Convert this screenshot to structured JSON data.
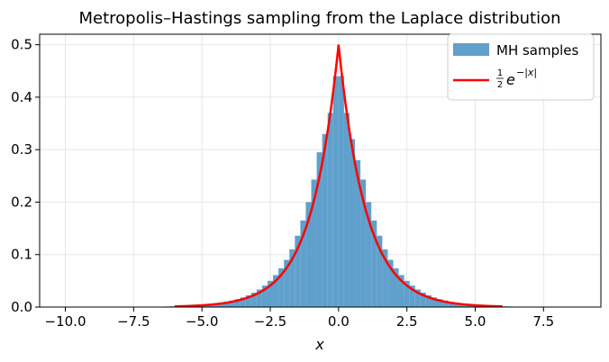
{
  "chart_data": {
    "type": "bar",
    "title": "Metropolis–Hastings sampling from the Laplace distribution",
    "xlabel": "x",
    "ylabel": "",
    "xlim": [
      -10.94,
      9.6
    ],
    "ylim": [
      0,
      0.52
    ],
    "xticks": [
      -10.0,
      -7.5,
      -5.0,
      -2.5,
      0.0,
      2.5,
      5.0,
      7.5
    ],
    "xtick_labels": [
      "−10.0",
      "−7.5",
      "−5.0",
      "−2.5",
      "0.0",
      "2.5",
      "5.0",
      "7.5"
    ],
    "yticks": [
      0.0,
      0.1,
      0.2,
      0.3,
      0.4,
      0.5
    ],
    "ytick_labels": [
      "0.0",
      "0.1",
      "0.2",
      "0.3",
      "0.4",
      "0.5"
    ],
    "grid": true,
    "legend_position": "top-right",
    "series": [
      {
        "name": "MH samples",
        "kind": "histogram",
        "color": "#5fa0cc",
        "bin_width": 0.2,
        "bin_range": [
          -10.0,
          8.8
        ],
        "density_model": "laplace-shaped, peak near 0.44 at x = 0, values listed per bin below",
        "bins": [
          {
            "x0": -7.2,
            "x1": -7.0,
            "value": 0.0006
          },
          {
            "x0": -6.8,
            "x1": -6.6,
            "value": 0.0008
          },
          {
            "x0": -6.4,
            "x1": -6.2,
            "value": 0.0011
          },
          {
            "x0": -6.2,
            "x1": -6.0,
            "value": 0.0014
          },
          {
            "x0": -6.0,
            "x1": -5.8,
            "value": 0.0017
          },
          {
            "x0": -5.8,
            "x1": -5.6,
            "value": 0.0021
          },
          {
            "x0": -5.6,
            "x1": -5.4,
            "value": 0.0025
          },
          {
            "x0": -5.4,
            "x1": -5.2,
            "value": 0.0031
          },
          {
            "x0": -5.2,
            "x1": -5.0,
            "value": 0.0038
          },
          {
            "x0": -5.0,
            "x1": -4.8,
            "value": 0.0046
          },
          {
            "x0": -4.8,
            "x1": -4.6,
            "value": 0.0056
          },
          {
            "x0": -4.6,
            "x1": -4.4,
            "value": 0.0068
          },
          {
            "x0": -4.4,
            "x1": -4.2,
            "value": 0.0083
          },
          {
            "x0": -4.2,
            "x1": -4.0,
            "value": 0.0101
          },
          {
            "x0": -4.0,
            "x1": -3.8,
            "value": 0.0124
          },
          {
            "x0": -3.8,
            "x1": -3.6,
            "value": 0.0151
          },
          {
            "x0": -3.6,
            "x1": -3.4,
            "value": 0.0184
          },
          {
            "x0": -3.4,
            "x1": -3.2,
            "value": 0.0225
          },
          {
            "x0": -3.2,
            "x1": -3.0,
            "value": 0.0275
          },
          {
            "x0": -3.0,
            "x1": -2.8,
            "value": 0.0336
          },
          {
            "x0": -2.8,
            "x1": -2.6,
            "value": 0.041
          },
          {
            "x0": -2.6,
            "x1": -2.4,
            "value": 0.05
          },
          {
            "x0": -2.4,
            "x1": -2.2,
            "value": 0.061
          },
          {
            "x0": -2.2,
            "x1": -2.0,
            "value": 0.074
          },
          {
            "x0": -2.0,
            "x1": -1.8,
            "value": 0.09
          },
          {
            "x0": -1.8,
            "x1": -1.6,
            "value": 0.11
          },
          {
            "x0": -1.6,
            "x1": -1.4,
            "value": 0.136
          },
          {
            "x0": -1.4,
            "x1": -1.2,
            "value": 0.165
          },
          {
            "x0": -1.2,
            "x1": -1.0,
            "value": 0.2
          },
          {
            "x0": -1.0,
            "x1": -0.8,
            "value": 0.243
          },
          {
            "x0": -0.8,
            "x1": -0.6,
            "value": 0.295
          },
          {
            "x0": -0.6,
            "x1": -0.4,
            "value": 0.33
          },
          {
            "x0": -0.4,
            "x1": -0.2,
            "value": 0.37
          },
          {
            "x0": -0.2,
            "x1": 0.0,
            "value": 0.44
          },
          {
            "x0": 0.0,
            "x1": 0.2,
            "value": 0.44
          },
          {
            "x0": 0.2,
            "x1": 0.4,
            "value": 0.37
          },
          {
            "x0": 0.4,
            "x1": 0.6,
            "value": 0.32
          },
          {
            "x0": 0.6,
            "x1": 0.8,
            "value": 0.28
          },
          {
            "x0": 0.8,
            "x1": 1.0,
            "value": 0.243
          },
          {
            "x0": 1.0,
            "x1": 1.2,
            "value": 0.2
          },
          {
            "x0": 1.2,
            "x1": 1.4,
            "value": 0.165
          },
          {
            "x0": 1.4,
            "x1": 1.6,
            "value": 0.136
          },
          {
            "x0": 1.6,
            "x1": 1.8,
            "value": 0.11
          },
          {
            "x0": 1.8,
            "x1": 2.0,
            "value": 0.09
          },
          {
            "x0": 2.0,
            "x1": 2.2,
            "value": 0.074
          },
          {
            "x0": 2.2,
            "x1": 2.4,
            "value": 0.061
          },
          {
            "x0": 2.4,
            "x1": 2.6,
            "value": 0.05
          },
          {
            "x0": 2.6,
            "x1": 2.8,
            "value": 0.041
          },
          {
            "x0": 2.8,
            "x1": 3.0,
            "value": 0.0336
          },
          {
            "x0": 3.0,
            "x1": 3.2,
            "value": 0.0275
          },
          {
            "x0": 3.2,
            "x1": 3.4,
            "value": 0.0225
          },
          {
            "x0": 3.4,
            "x1": 3.6,
            "value": 0.0184
          },
          {
            "x0": 3.6,
            "x1": 3.8,
            "value": 0.0151
          },
          {
            "x0": 3.8,
            "x1": 4.0,
            "value": 0.0124
          },
          {
            "x0": 4.0,
            "x1": 4.2,
            "value": 0.0101
          },
          {
            "x0": 4.2,
            "x1": 4.4,
            "value": 0.0083
          },
          {
            "x0": 4.4,
            "x1": 4.6,
            "value": 0.0068
          },
          {
            "x0": 4.6,
            "x1": 4.8,
            "value": 0.0056
          },
          {
            "x0": 4.8,
            "x1": 5.0,
            "value": 0.0046
          },
          {
            "x0": 5.0,
            "x1": 5.2,
            "value": 0.0038
          },
          {
            "x0": 5.2,
            "x1": 5.4,
            "value": 0.0031
          },
          {
            "x0": 5.4,
            "x1": 5.6,
            "value": 0.0025
          },
          {
            "x0": 5.6,
            "x1": 5.8,
            "value": 0.0021
          },
          {
            "x0": 5.8,
            "x1": 6.0,
            "value": 0.0017
          },
          {
            "x0": 6.0,
            "x1": 6.2,
            "value": 0.0014
          },
          {
            "x0": 6.2,
            "x1": 6.4,
            "value": 0.0011
          },
          {
            "x0": 6.6,
            "x1": 6.8,
            "value": 0.0009
          },
          {
            "x0": 7.0,
            "x1": 7.2,
            "value": 0.0007
          },
          {
            "x0": 7.6,
            "x1": 7.8,
            "value": 0.0006
          },
          {
            "x0": 8.6,
            "x1": 8.8,
            "value": 0.0006
          }
        ]
      },
      {
        "name": "½e^{−|x|}",
        "kind": "line",
        "color": "#ff0000",
        "function": "0.5*exp(-abs(x))",
        "x_range": [
          -6.0,
          6.0
        ],
        "x": [
          -6.0,
          -5.0,
          -4.0,
          -3.0,
          -2.5,
          -2.0,
          -1.5,
          -1.0,
          -0.75,
          -0.5,
          -0.25,
          0.0,
          0.25,
          0.5,
          0.75,
          1.0,
          1.5,
          2.0,
          2.5,
          3.0,
          4.0,
          5.0,
          6.0
        ],
        "y": [
          0.0012,
          0.0034,
          0.0092,
          0.0249,
          0.041,
          0.0677,
          0.1116,
          0.1839,
          0.2362,
          0.3033,
          0.3894,
          0.5,
          0.3894,
          0.3033,
          0.2362,
          0.1839,
          0.1116,
          0.0677,
          0.041,
          0.0249,
          0.0092,
          0.0034,
          0.0012
        ]
      }
    ],
    "legend": [
      {
        "label": "MH samples",
        "swatch": "patch",
        "color": "#5fa0cc"
      },
      {
        "label_prefix_fraction": [
          "1",
          "2"
        ],
        "label_text": "e",
        "label_exponent": "−|x|",
        "swatch": "line",
        "color": "#ff0000"
      }
    ]
  }
}
